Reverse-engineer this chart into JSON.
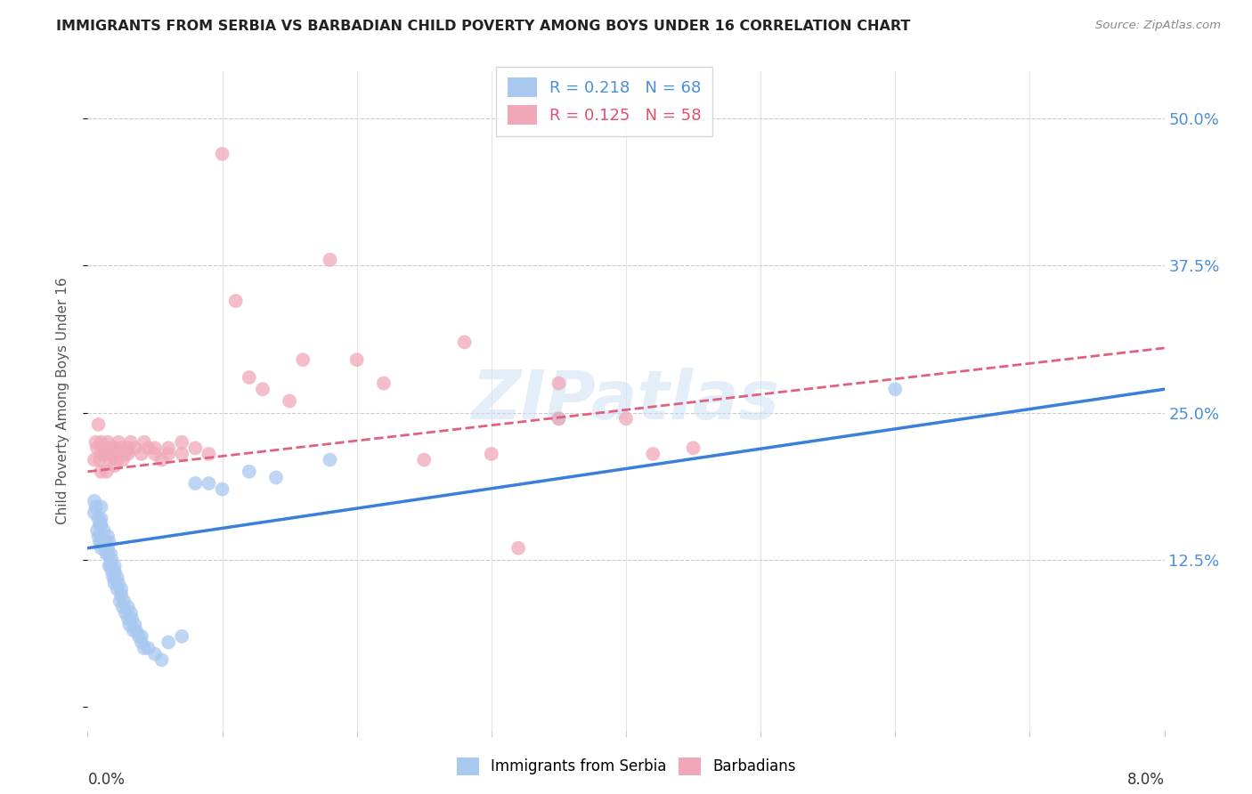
{
  "title": "IMMIGRANTS FROM SERBIA VS BARBADIAN CHILD POVERTY AMONG BOYS UNDER 16 CORRELATION CHART",
  "source": "Source: ZipAtlas.com",
  "ylabel": "Child Poverty Among Boys Under 16",
  "xlim": [
    0.0,
    0.08
  ],
  "ylim": [
    -0.02,
    0.54
  ],
  "yticks": [
    0.0,
    0.125,
    0.25,
    0.375,
    0.5
  ],
  "ytick_labels": [
    "",
    "12.5%",
    "25.0%",
    "37.5%",
    "50.0%"
  ],
  "color_blue": "#a8c8f0",
  "color_pink": "#f0a8b8",
  "color_blue_text": "#4a90d9",
  "color_pink_text": "#e05070",
  "trend_blue": "#3a7fd9",
  "trend_pink": "#e06080",
  "watermark": "ZIPatlas",
  "serbia_x": [
    0.0005,
    0.0005,
    0.0006,
    0.0007,
    0.0008,
    0.0008,
    0.0009,
    0.0009,
    0.001,
    0.001,
    0.001,
    0.001,
    0.001,
    0.001,
    0.0012,
    0.0012,
    0.0013,
    0.0014,
    0.0014,
    0.0015,
    0.0015,
    0.0015,
    0.0016,
    0.0016,
    0.0017,
    0.0017,
    0.0018,
    0.0018,
    0.0019,
    0.002,
    0.002,
    0.002,
    0.002,
    0.002,
    0.0022,
    0.0022,
    0.0023,
    0.0024,
    0.0025,
    0.0025,
    0.0026,
    0.0027,
    0.0028,
    0.003,
    0.003,
    0.0031,
    0.0032,
    0.0033,
    0.0034,
    0.0035,
    0.0036,
    0.0038,
    0.004,
    0.004,
    0.0042,
    0.0045,
    0.005,
    0.0055,
    0.006,
    0.007,
    0.008,
    0.009,
    0.01,
    0.012,
    0.014,
    0.018,
    0.035,
    0.06
  ],
  "serbia_y": [
    0.165,
    0.175,
    0.17,
    0.15,
    0.16,
    0.145,
    0.155,
    0.14,
    0.135,
    0.14,
    0.155,
    0.16,
    0.17,
    0.145,
    0.14,
    0.15,
    0.135,
    0.13,
    0.14,
    0.13,
    0.145,
    0.135,
    0.12,
    0.14,
    0.13,
    0.12,
    0.115,
    0.125,
    0.11,
    0.105,
    0.115,
    0.12,
    0.11,
    0.115,
    0.1,
    0.11,
    0.105,
    0.09,
    0.1,
    0.095,
    0.085,
    0.09,
    0.08,
    0.075,
    0.085,
    0.07,
    0.08,
    0.075,
    0.065,
    0.07,
    0.065,
    0.06,
    0.055,
    0.06,
    0.05,
    0.05,
    0.045,
    0.04,
    0.055,
    0.06,
    0.19,
    0.19,
    0.185,
    0.2,
    0.195,
    0.21,
    0.245,
    0.27
  ],
  "barbadian_x": [
    0.0005,
    0.0006,
    0.0007,
    0.0008,
    0.0009,
    0.001,
    0.001,
    0.001,
    0.0012,
    0.0013,
    0.0014,
    0.0015,
    0.0015,
    0.0016,
    0.0017,
    0.0018,
    0.002,
    0.002,
    0.002,
    0.0022,
    0.0023,
    0.0025,
    0.0026,
    0.0028,
    0.003,
    0.003,
    0.0032,
    0.0035,
    0.004,
    0.0042,
    0.0045,
    0.005,
    0.005,
    0.0055,
    0.006,
    0.006,
    0.007,
    0.007,
    0.008,
    0.009,
    0.01,
    0.011,
    0.012,
    0.013,
    0.015,
    0.016,
    0.018,
    0.02,
    0.022,
    0.025,
    0.028,
    0.03,
    0.032,
    0.035,
    0.035,
    0.04,
    0.042,
    0.045
  ],
  "barbadian_y": [
    0.21,
    0.225,
    0.22,
    0.24,
    0.21,
    0.2,
    0.215,
    0.225,
    0.22,
    0.215,
    0.2,
    0.215,
    0.225,
    0.21,
    0.22,
    0.215,
    0.205,
    0.215,
    0.22,
    0.21,
    0.225,
    0.22,
    0.21,
    0.215,
    0.22,
    0.215,
    0.225,
    0.22,
    0.215,
    0.225,
    0.22,
    0.215,
    0.22,
    0.21,
    0.215,
    0.22,
    0.225,
    0.215,
    0.22,
    0.215,
    0.47,
    0.345,
    0.28,
    0.27,
    0.26,
    0.295,
    0.38,
    0.295,
    0.275,
    0.21,
    0.31,
    0.215,
    0.135,
    0.245,
    0.275,
    0.245,
    0.215,
    0.22
  ]
}
